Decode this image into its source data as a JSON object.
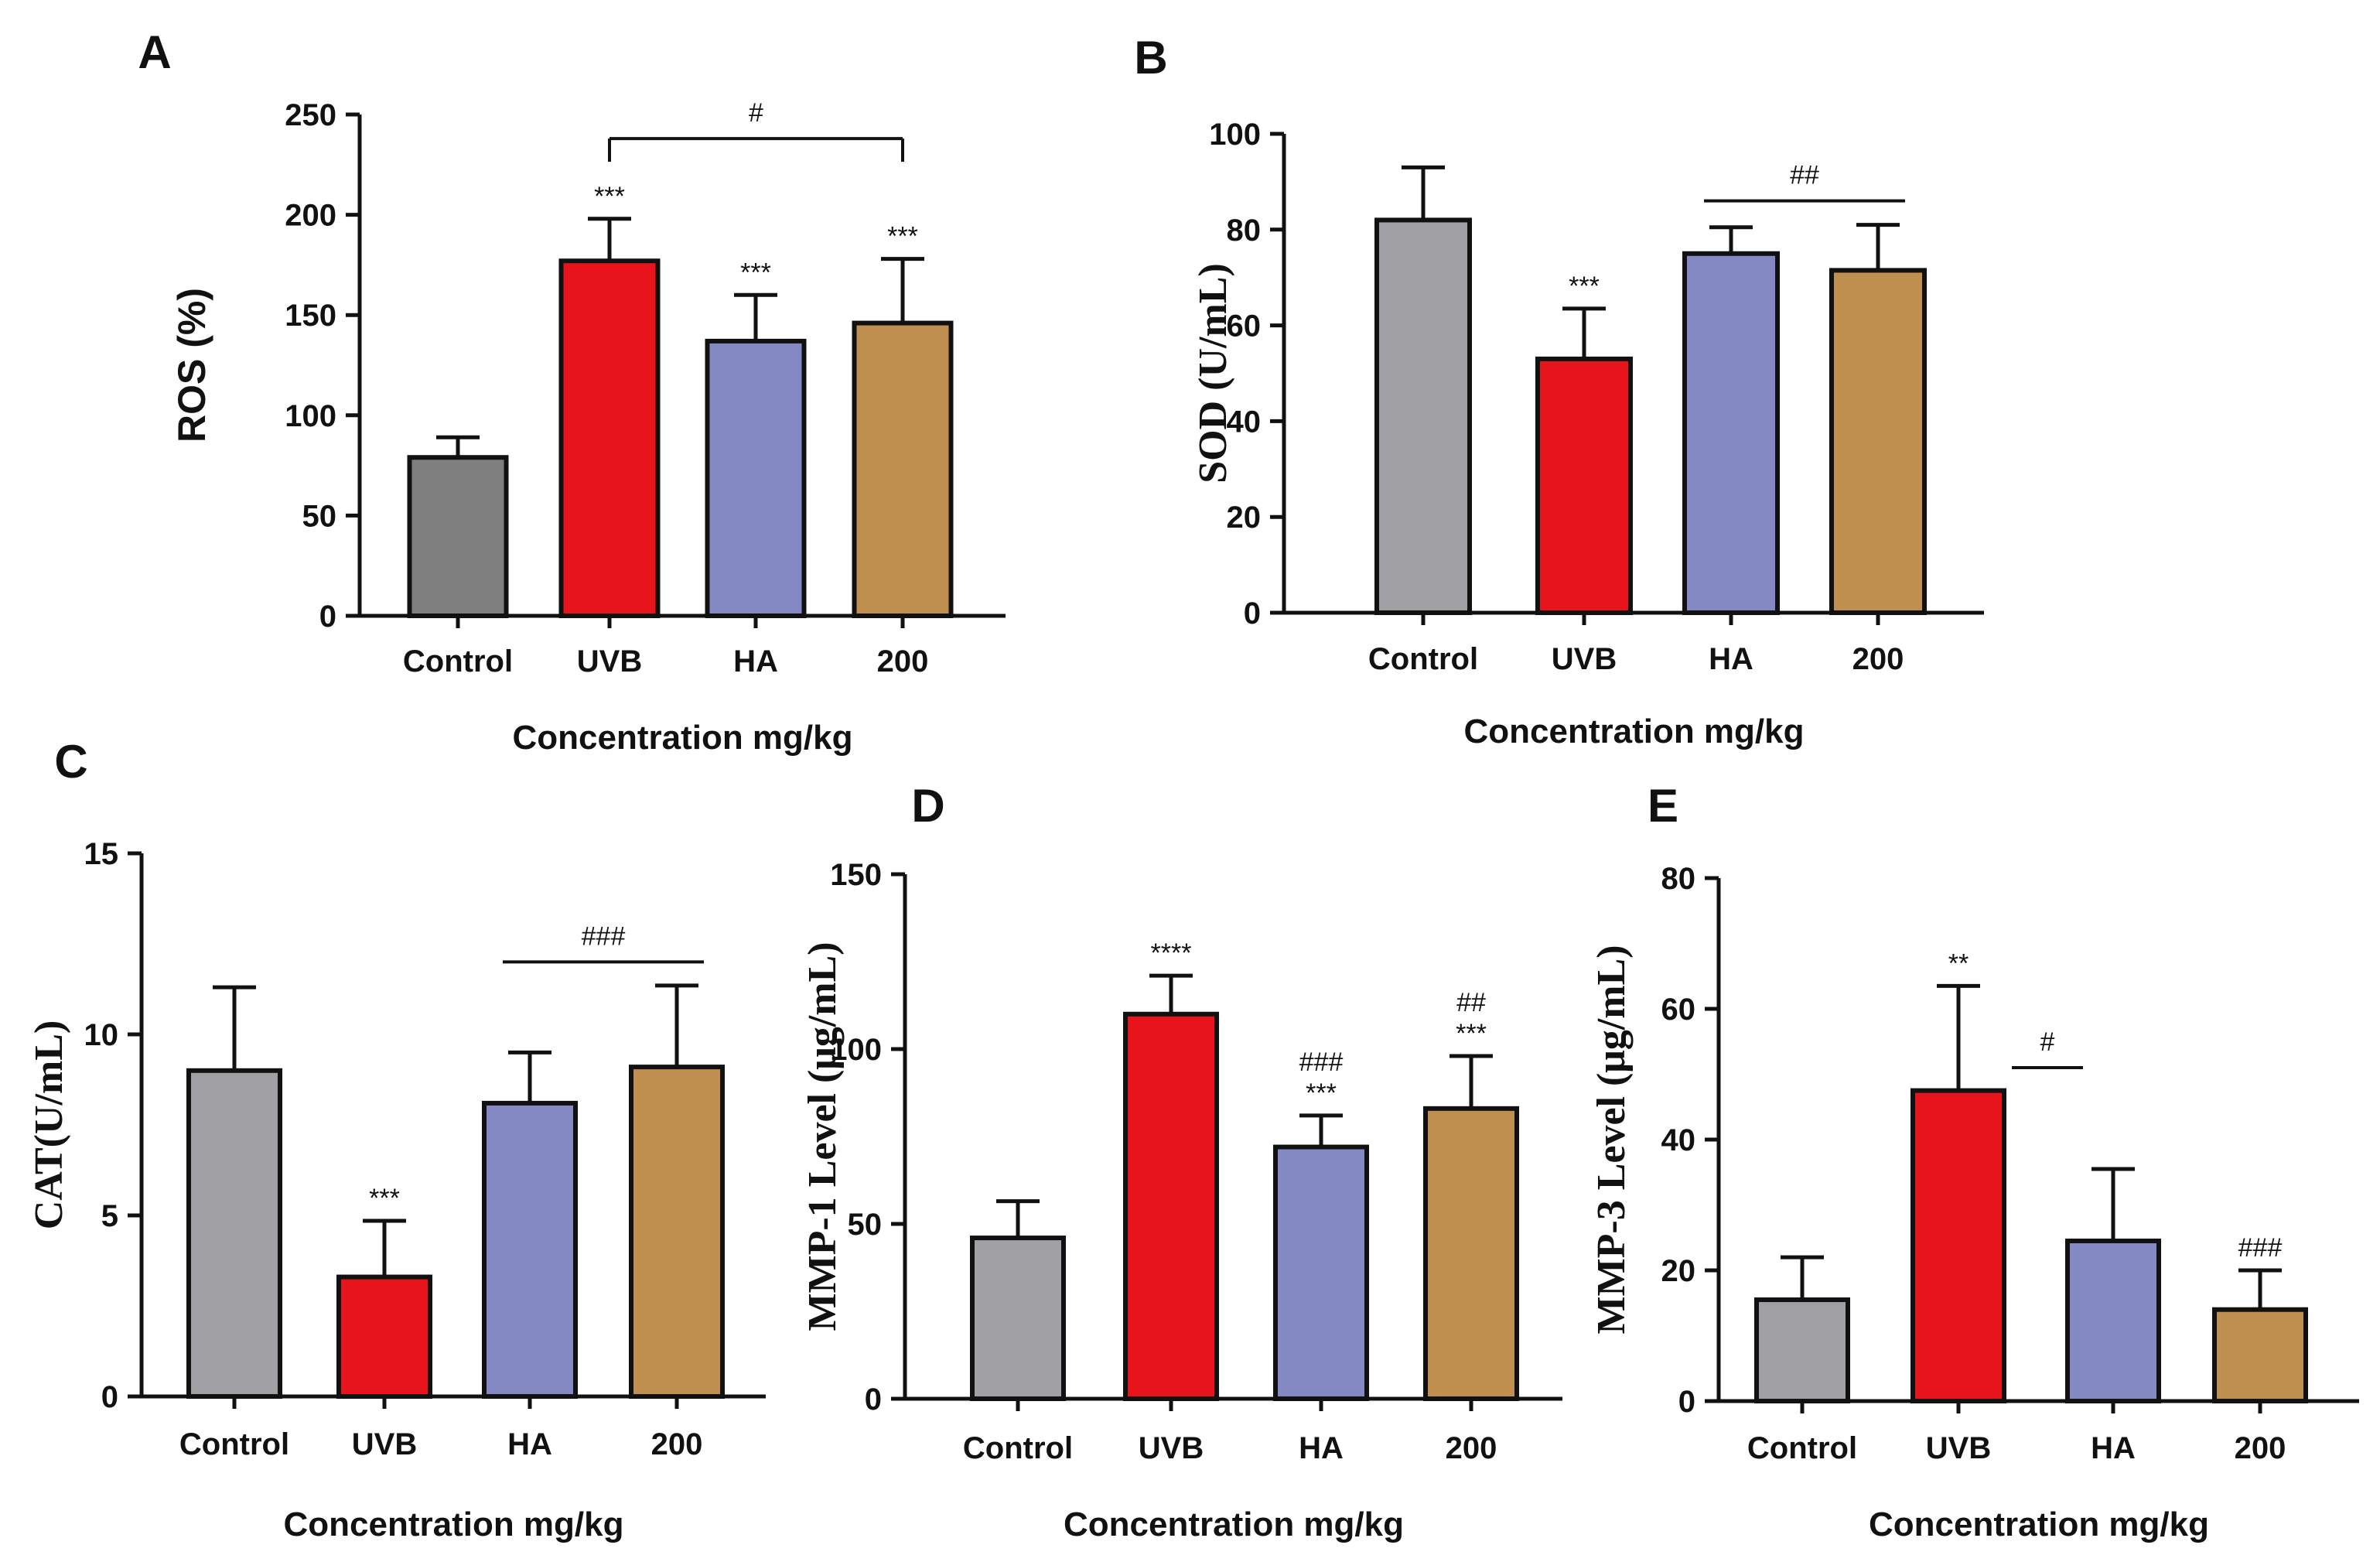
{
  "chart_data": [
    {
      "id": "A",
      "type": "bar",
      "panel_label": "A",
      "ylabel": "ROS (%)",
      "xlabel": "Concentration mg/kg",
      "categories": [
        "Control",
        "UVB",
        "HA",
        "200"
      ],
      "values": [
        79,
        177,
        137,
        146
      ],
      "errors": [
        10,
        21,
        23,
        32
      ],
      "colors": [
        "#7f7f7f",
        "#e8141b",
        "#8489c4",
        "#be8f4f"
      ],
      "ylim": [
        0,
        250
      ],
      "yticks": [
        0,
        50,
        100,
        150,
        200,
        250
      ],
      "bar_labels": [
        "",
        "***",
        "***",
        "***"
      ],
      "brackets": [
        {
          "from": 1,
          "to": 3,
          "y": 238,
          "label": "#",
          "style": "bracket"
        }
      ]
    },
    {
      "id": "B",
      "type": "bar",
      "panel_label": "B",
      "ylabel": "SOD (U/mL)",
      "xlabel": "Concentration mg/kg",
      "categories": [
        "Control",
        "UVB",
        "HA",
        "200"
      ],
      "values": [
        82,
        53,
        75,
        71.5
      ],
      "errors": [
        11,
        10.5,
        5.5,
        9.5
      ],
      "colors": [
        "#a0a0a5",
        "#e8141b",
        "#8489c4",
        "#be8f4f"
      ],
      "ylim": [
        0,
        100
      ],
      "yticks": [
        0,
        20,
        40,
        60,
        80,
        100
      ],
      "bar_labels": [
        "",
        "***",
        "",
        ""
      ],
      "brackets": [
        {
          "from": 2,
          "to": 3,
          "y": 86,
          "label": "##",
          "style": "line"
        }
      ]
    },
    {
      "id": "C",
      "type": "bar",
      "panel_label": "C",
      "ylabel": "CAT(U/mL)",
      "xlabel": "Concentration mg/kg",
      "categories": [
        "Control",
        "UVB",
        "HA",
        "200"
      ],
      "values": [
        9,
        3.3,
        8.1,
        9.1
      ],
      "errors": [
        2.3,
        1.55,
        1.4,
        2.25
      ],
      "colors": [
        "#a0a0a5",
        "#e8141b",
        "#8489c4",
        "#be8f4f"
      ],
      "ylim": [
        0,
        15
      ],
      "yticks": [
        0,
        5,
        10,
        15
      ],
      "bar_labels": [
        "",
        "***",
        "",
        ""
      ],
      "brackets": [
        {
          "from": 2,
          "to": 3,
          "y": 12.0,
          "label": "###",
          "style": "line"
        }
      ]
    },
    {
      "id": "D",
      "type": "bar",
      "panel_label": "D",
      "ylabel": "MMP-1 Level (μg/mL)",
      "xlabel": "Concentration mg/kg",
      "categories": [
        "Control",
        "UVB",
        "HA",
        "200"
      ],
      "values": [
        46,
        110,
        72,
        83
      ],
      "errors": [
        10.5,
        11,
        9,
        15
      ],
      "colors": [
        "#a0a0a5",
        "#e8141b",
        "#8489c4",
        "#be8f4f"
      ],
      "ylim": [
        0,
        150
      ],
      "yticks": [
        0,
        50,
        100,
        150
      ],
      "bar_labels": [
        "",
        "****",
        "###\n***",
        "##\n***"
      ],
      "brackets": []
    },
    {
      "id": "E",
      "type": "bar",
      "panel_label": "E",
      "ylabel": "MMP-3 Level (μg/mL)",
      "xlabel": "Concentration mg/kg",
      "categories": [
        "Control",
        "UVB",
        "HA",
        "200"
      ],
      "values": [
        15.5,
        47.5,
        24.5,
        14
      ],
      "errors": [
        6.5,
        16,
        11,
        6
      ],
      "colors": [
        "#a0a0a5",
        "#e8141b",
        "#8489c4",
        "#be8f4f"
      ],
      "ylim": [
        0,
        80
      ],
      "yticks": [
        0,
        20,
        40,
        60,
        80
      ],
      "bar_labels": [
        "",
        "**",
        "",
        "###"
      ],
      "brackets": [
        {
          "from": 1,
          "to": 2,
          "y": 51,
          "label": "#",
          "style": "half"
        }
      ]
    }
  ]
}
